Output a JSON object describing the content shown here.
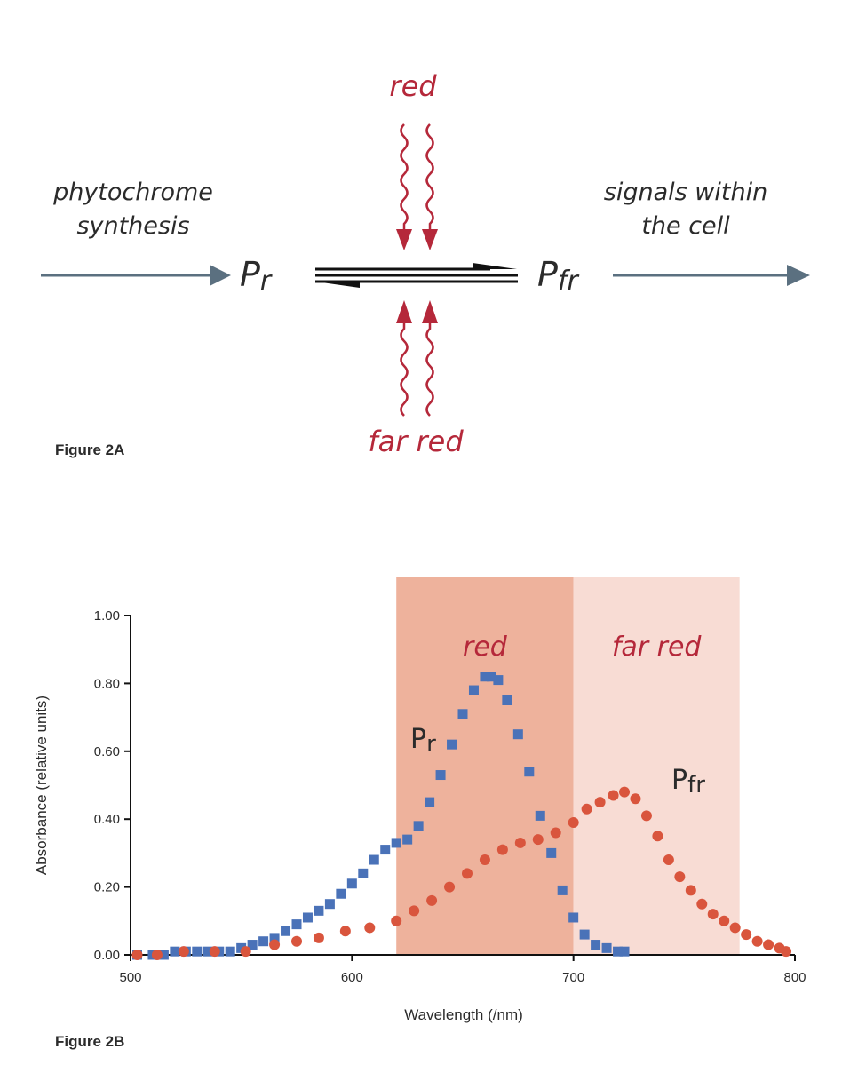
{
  "figure_a": {
    "label": "Figure 2A",
    "left_text_1": "phytochrome",
    "left_text_2": "synthesis",
    "right_text_1": "signals within",
    "right_text_2": "the cell",
    "pr_main": "P",
    "pr_sub": "r",
    "pfr_main": "P",
    "pfr_sub": "fr",
    "red_label": "red",
    "far_red_label": "far red"
  },
  "figure_b": {
    "label": "Figure 2B",
    "series_label_pr_main": "P",
    "series_label_pr_sub": "r",
    "series_label_pfr_main": "P",
    "series_label_pfr_sub": "fr",
    "band_red_label": "red",
    "band_far_red_label": "far red"
  },
  "colors": {
    "pr_series": "#4a72b8",
    "pfr_series": "#d9553d",
    "red_band": "#eeb29c",
    "far_red_band": "#f8dcd4",
    "accent_red": "#b5283a",
    "arrow_gray": "#5b7080"
  },
  "chart_data": {
    "type": "scatter",
    "xlabel": "Wavelength (/nm)",
    "ylabel": "Absorbance (relative units)",
    "xlim": [
      500,
      800
    ],
    "ylim": [
      0,
      1.0
    ],
    "x_ticks": [
      "500",
      "600",
      "700",
      "800"
    ],
    "y_ticks": [
      "0.00",
      "0.20",
      "0.40",
      "0.60",
      "0.80",
      "1.00"
    ],
    "shaded_regions": [
      {
        "label": "red",
        "x_range": [
          620,
          700
        ]
      },
      {
        "label": "far red",
        "x_range": [
          700,
          775
        ]
      }
    ],
    "series": [
      {
        "name": "Pr",
        "marker": "square",
        "x": [
          503,
          510,
          515,
          520,
          525,
          530,
          535,
          540,
          545,
          550,
          555,
          560,
          565,
          570,
          575,
          580,
          585,
          590,
          595,
          600,
          605,
          610,
          615,
          620,
          625,
          630,
          635,
          640,
          645,
          650,
          655,
          660,
          663,
          666,
          670,
          675,
          680,
          685,
          690,
          695,
          700,
          705,
          710,
          715,
          720,
          723
        ],
        "y": [
          0.0,
          0.0,
          0.0,
          0.01,
          0.01,
          0.01,
          0.01,
          0.01,
          0.01,
          0.02,
          0.03,
          0.04,
          0.05,
          0.07,
          0.09,
          0.11,
          0.13,
          0.15,
          0.18,
          0.21,
          0.24,
          0.28,
          0.31,
          0.33,
          0.34,
          0.38,
          0.45,
          0.53,
          0.62,
          0.71,
          0.78,
          0.82,
          0.82,
          0.81,
          0.75,
          0.65,
          0.54,
          0.41,
          0.3,
          0.19,
          0.11,
          0.06,
          0.03,
          0.02,
          0.01,
          0.01
        ]
      },
      {
        "name": "Pfr",
        "marker": "circle",
        "x": [
          503,
          512,
          524,
          538,
          552,
          565,
          575,
          585,
          597,
          608,
          620,
          628,
          636,
          644,
          652,
          660,
          668,
          676,
          684,
          692,
          700,
          706,
          712,
          718,
          723,
          728,
          733,
          738,
          743,
          748,
          753,
          758,
          763,
          768,
          773,
          778,
          783,
          788,
          793,
          796
        ],
        "y": [
          0.0,
          0.0,
          0.01,
          0.01,
          0.01,
          0.03,
          0.04,
          0.05,
          0.07,
          0.08,
          0.1,
          0.13,
          0.16,
          0.2,
          0.24,
          0.28,
          0.31,
          0.33,
          0.34,
          0.36,
          0.39,
          0.43,
          0.45,
          0.47,
          0.48,
          0.46,
          0.41,
          0.35,
          0.28,
          0.23,
          0.19,
          0.15,
          0.12,
          0.1,
          0.08,
          0.06,
          0.04,
          0.03,
          0.02,
          0.01
        ]
      }
    ]
  }
}
